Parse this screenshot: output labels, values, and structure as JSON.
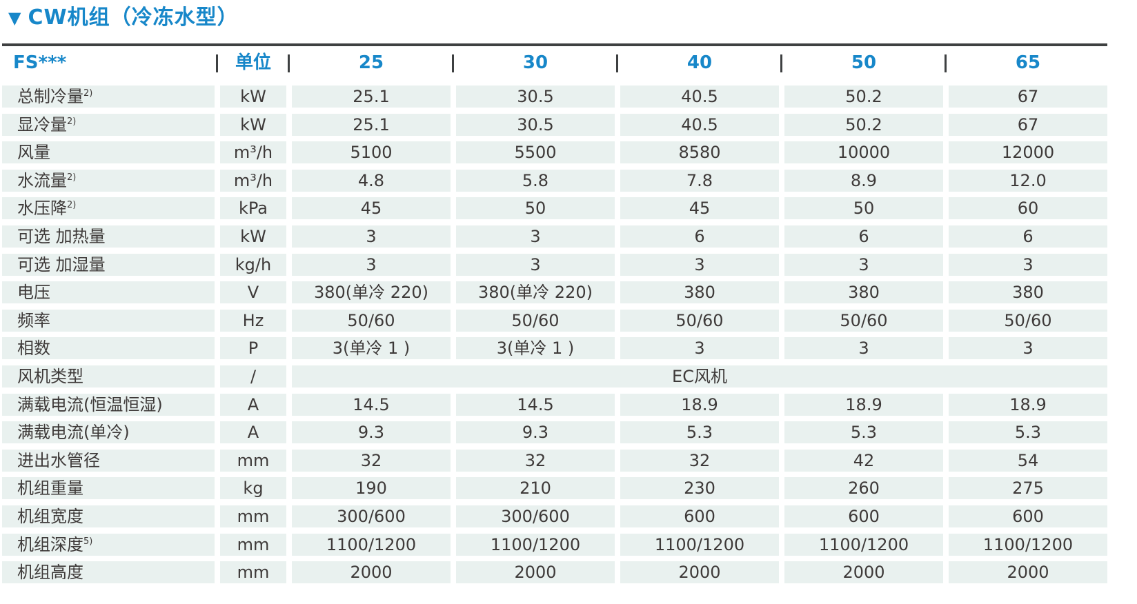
{
  "title": {
    "icon": "down-triangle",
    "text": "CW机组（冷冻水型）"
  },
  "colors": {
    "accent_blue": "#1787c9",
    "cell_background": "#e9f1ef",
    "text_dark": "#3e3a39",
    "rule_dark": "#3e4041"
  },
  "table": {
    "header": {
      "series_label": "FS***",
      "unit_label": "单位",
      "models": [
        "25",
        "30",
        "40",
        "50",
        "65"
      ],
      "separator": "|"
    },
    "rows": [
      {
        "label": "总制冷量",
        "sup": "2)",
        "unit": "kW",
        "values": [
          "25.1",
          "30.5",
          "40.5",
          "50.2",
          "67"
        ]
      },
      {
        "label": "显冷量",
        "sup": "2)",
        "unit": "kW",
        "values": [
          "25.1",
          "30.5",
          "40.5",
          "50.2",
          "67"
        ]
      },
      {
        "label": "风量",
        "sup": "",
        "unit": "m³/h",
        "values": [
          "5100",
          "5500",
          "8580",
          "10000",
          "12000"
        ]
      },
      {
        "label": "水流量",
        "sup": "2)",
        "unit": "m³/h",
        "values": [
          "4.8",
          "5.8",
          "7.8",
          "8.9",
          "12.0"
        ]
      },
      {
        "label": "水压降",
        "sup": "2)",
        "unit": "kPa",
        "values": [
          "45",
          "50",
          "45",
          "50",
          "60"
        ]
      },
      {
        "label": "可选 加热量",
        "sup": "",
        "unit": "kW",
        "values": [
          "3",
          "3",
          "6",
          "6",
          "6"
        ]
      },
      {
        "label": "可选 加湿量",
        "sup": "",
        "unit": "kg/h",
        "values": [
          "3",
          "3",
          "3",
          "3",
          "3"
        ]
      },
      {
        "label": "电压",
        "sup": "",
        "unit": "V",
        "values": [
          "380(单冷 220)",
          "380(单冷 220)",
          "380",
          "380",
          "380"
        ]
      },
      {
        "label": "频率",
        "sup": "",
        "unit": "Hz",
        "values": [
          "50/60",
          "50/60",
          "50/60",
          "50/60",
          "50/60"
        ]
      },
      {
        "label": "相数",
        "sup": "",
        "unit": "P",
        "values": [
          "3(单冷 1 )",
          "3(单冷 1 )",
          "3",
          "3",
          "3"
        ]
      },
      {
        "label": "风机类型",
        "sup": "",
        "unit": "/",
        "span_value": "EC风机"
      },
      {
        "label": "满载电流(恒温恒湿)",
        "sup": "",
        "unit": "A",
        "values": [
          "14.5",
          "14.5",
          "18.9",
          "18.9",
          "18.9"
        ]
      },
      {
        "label": "满载电流(单冷)",
        "sup": "",
        "unit": "A",
        "values": [
          "9.3",
          "9.3",
          "5.3",
          "5.3",
          "5.3"
        ]
      },
      {
        "label": "进出水管径",
        "sup": "",
        "unit": "mm",
        "values": [
          "32",
          "32",
          "32",
          "42",
          "54"
        ]
      },
      {
        "label": "机组重量",
        "sup": "",
        "unit": "kg",
        "values": [
          "190",
          "210",
          "230",
          "260",
          "275"
        ]
      },
      {
        "label": "机组宽度",
        "sup": "",
        "unit": "mm",
        "values": [
          "300/600",
          "300/600",
          "600",
          "600",
          "600"
        ]
      },
      {
        "label": "机组深度",
        "sup": "5)",
        "unit": "mm",
        "values": [
          "1100/1200",
          "1100/1200",
          "1100/1200",
          "1100/1200",
          "1100/1200"
        ]
      },
      {
        "label": "机组高度",
        "sup": "",
        "unit": "mm",
        "values": [
          "2000",
          "2000",
          "2000",
          "2000",
          "2000"
        ]
      }
    ]
  }
}
